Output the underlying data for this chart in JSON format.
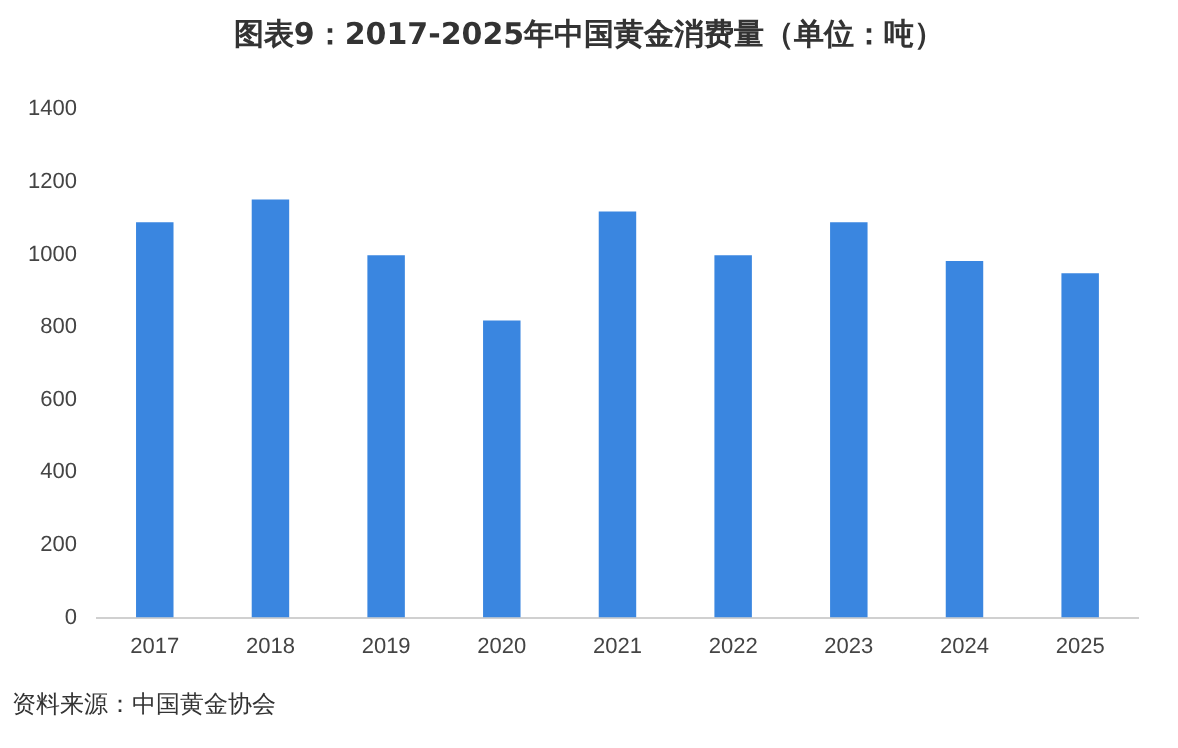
{
  "chart_data": {
    "type": "bar",
    "title": "图表9：2017-2025年中国黄金消费量（单位：吨）",
    "categories": [
      "2017",
      "2018",
      "2019",
      "2020",
      "2021",
      "2022",
      "2023",
      "2024",
      "2025"
    ],
    "values": [
      1089,
      1151,
      998,
      818,
      1118,
      998,
      1089,
      982,
      948
    ],
    "color": "#3a86e0",
    "ylim": [
      0,
      1400
    ],
    "yticks": [
      0,
      200,
      400,
      600,
      800,
      1000,
      1200,
      1400
    ],
    "grid": false,
    "legend": false,
    "annotations": [
      "资料来源：中国黄金协会"
    ]
  }
}
